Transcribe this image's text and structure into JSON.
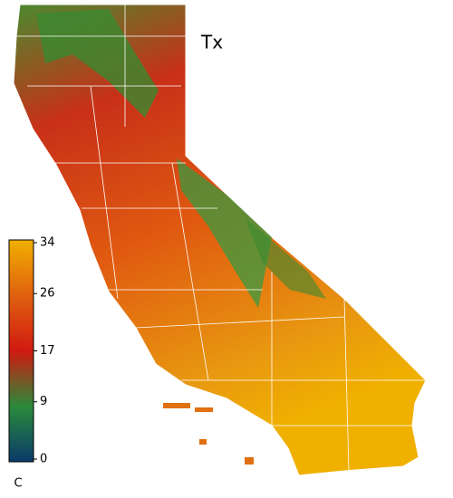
{
  "map": {
    "title": "Tx",
    "colorbar": {
      "range": [
        0,
        34
      ],
      "ticks": [
        0,
        9,
        17,
        26,
        34
      ],
      "unit": "C",
      "colors": [
        "#0a3a6a",
        "#2a8a3a",
        "#d01a10",
        "#e06010",
        "#f0b000"
      ]
    }
  }
}
